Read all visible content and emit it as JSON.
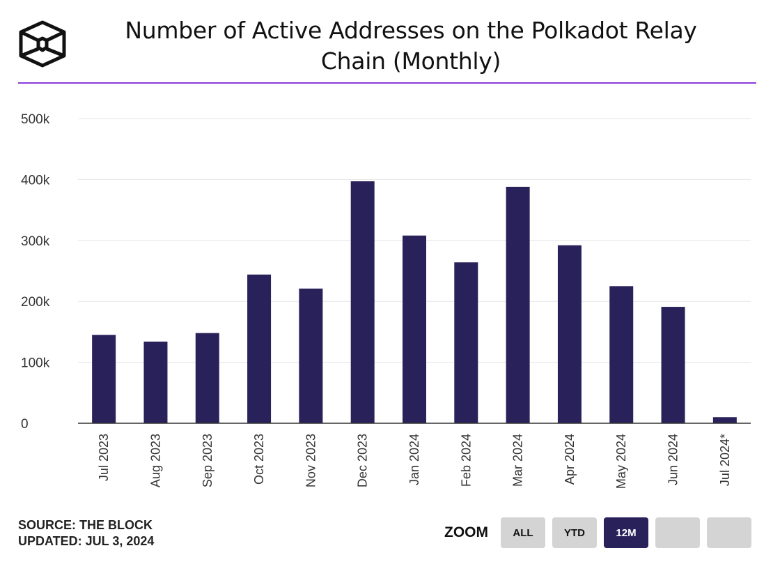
{
  "chart_data": {
    "type": "bar",
    "title": "Number of Active Addresses on the Polkadot Relay Chain (Monthly)",
    "title_lines": [
      "Number of Active Addresses on the Polkadot Relay",
      "Chain (Monthly)"
    ],
    "categories": [
      "Jul 2023",
      "Aug 2023",
      "Sep 2023",
      "Oct 2023",
      "Nov 2023",
      "Dec 2023",
      "Jan 2024",
      "Feb 2024",
      "Mar 2024",
      "Apr 2024",
      "May 2024",
      "Jun 2024",
      "Jul 2024*"
    ],
    "values": [
      145000,
      134000,
      148000,
      244000,
      221000,
      397000,
      308000,
      264000,
      388000,
      292000,
      225000,
      191000,
      10000
    ],
    "ylim": [
      0,
      500000
    ],
    "yticks": [
      0,
      100000,
      200000,
      300000,
      400000,
      500000
    ],
    "ytick_labels": [
      "0",
      "100k",
      "200k",
      "300k",
      "400k",
      "500k"
    ],
    "xlabel": "",
    "ylabel": "",
    "grid": true,
    "bar_color": "#29215a"
  },
  "footer": {
    "source": "SOURCE: THE BLOCK",
    "updated": "UPDATED: JUL 3, 2024"
  },
  "zoom": {
    "label": "ZOOM",
    "buttons": [
      "ALL",
      "YTD",
      "12M",
      "",
      ""
    ],
    "active": 2
  },
  "colors": {
    "accent": "#8a3ad6",
    "button_bg": "#d4d4d4"
  }
}
